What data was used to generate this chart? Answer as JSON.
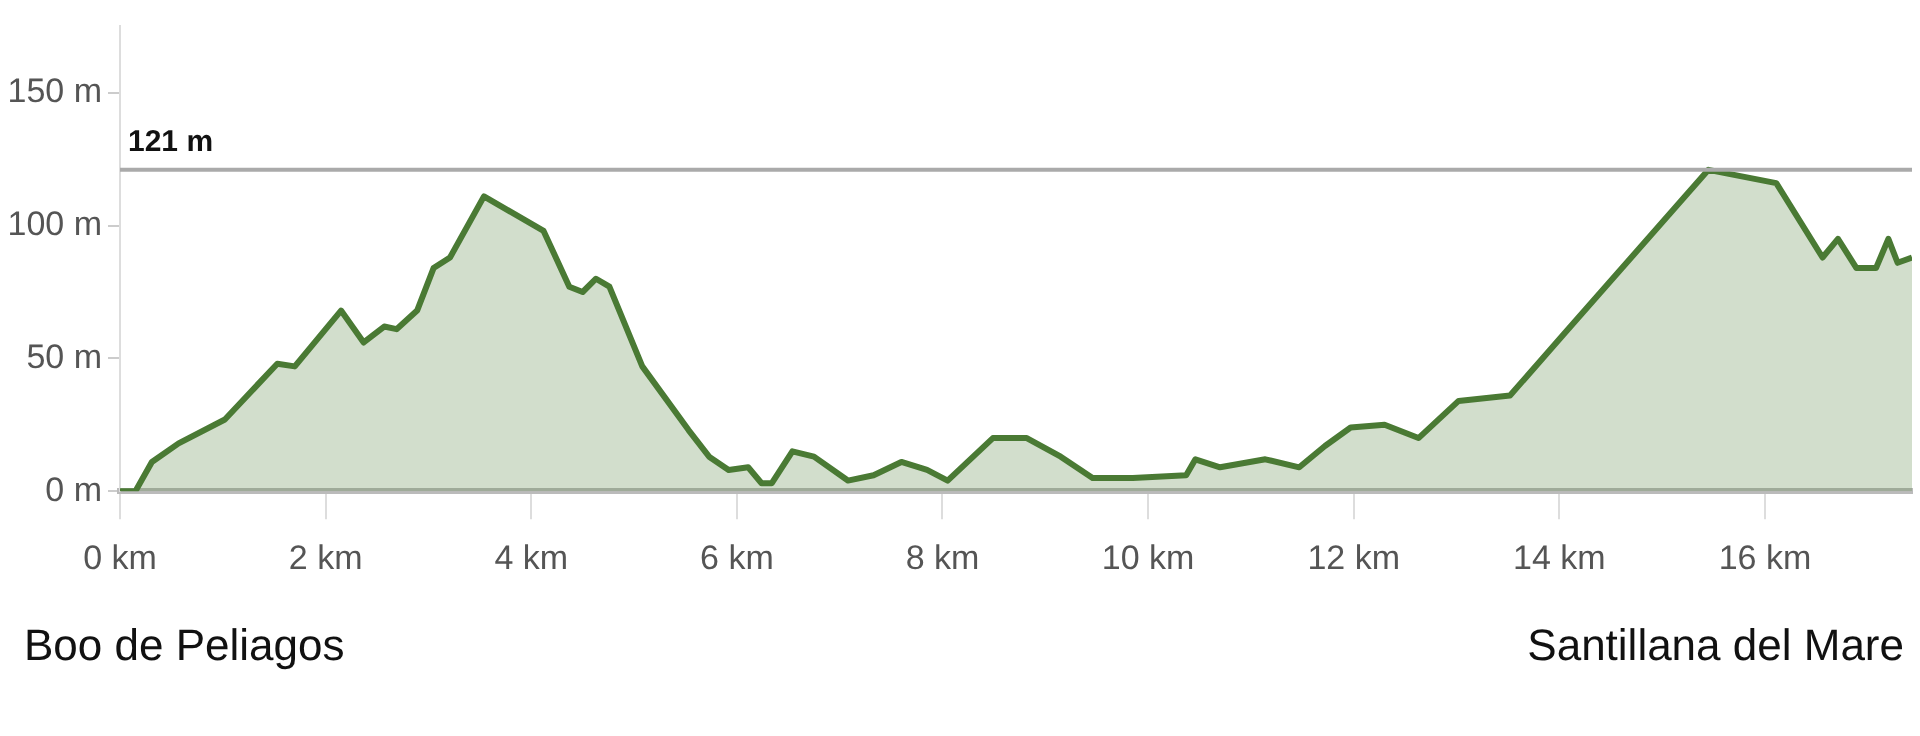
{
  "chart_data": {
    "type": "area",
    "x": [
      0,
      0.15,
      0.31,
      0.57,
      1.02,
      1.53,
      1.7,
      2.15,
      2.37,
      2.57,
      2.69,
      2.89,
      3.05,
      3.21,
      3.54,
      4.12,
      4.37,
      4.5,
      4.63,
      4.76,
      5.08,
      5.53,
      5.73,
      5.92,
      6.11,
      6.24,
      6.34,
      6.54,
      6.75,
      7.08,
      7.33,
      7.6,
      7.85,
      8.05,
      8.49,
      8.82,
      9.15,
      9.46,
      9.85,
      10.37,
      10.46,
      10.7,
      11.14,
      11.47,
      11.72,
      11.97,
      12.3,
      12.63,
      13.02,
      13.52,
      14.04,
      15.45,
      16.11,
      16.56,
      16.71,
      16.89,
      17.08,
      17.2,
      17.29,
      17.43
    ],
    "series": [
      {
        "color": "#4a7a34",
        "values": [
          0,
          0,
          11,
          18,
          27,
          48,
          47,
          68,
          56,
          62,
          61,
          68,
          84,
          88,
          111,
          98,
          77,
          75,
          80,
          77,
          47,
          23,
          13,
          8,
          9,
          3,
          3,
          15,
          13,
          4,
          6,
          11,
          8,
          4,
          20,
          20,
          13,
          5,
          5,
          6,
          12,
          9,
          12,
          9,
          17,
          24,
          25,
          20,
          34,
          36,
          59,
          121,
          116,
          88,
          95,
          84,
          84,
          95,
          86,
          88
        ]
      }
    ],
    "xlim": [
      0,
      17.43
    ],
    "ylim": [
      0,
      175
    ],
    "xticks": [
      {
        "value": 0,
        "label": "0 km"
      },
      {
        "value": 2,
        "label": "2 km"
      },
      {
        "value": 4,
        "label": "4 km"
      },
      {
        "value": 6,
        "label": "6 km"
      },
      {
        "value": 8,
        "label": "8 km"
      },
      {
        "value": 10,
        "label": "10 km"
      },
      {
        "value": 12,
        "label": "12 km"
      },
      {
        "value": 14,
        "label": "14 km"
      },
      {
        "value": 16,
        "label": "16 km"
      }
    ],
    "yticks": [
      {
        "value": 0,
        "label": "0 m"
      },
      {
        "value": 50,
        "label": "50 m"
      },
      {
        "value": 100,
        "label": "100 m"
      },
      {
        "value": 150,
        "label": "150 m"
      }
    ],
    "ref_lines": [
      {
        "axis": "y",
        "value": 121,
        "label": "121 m",
        "color": "#aaaaaa"
      }
    ],
    "grid": false,
    "legend": false,
    "marker": "none",
    "line_style": "solid",
    "annotations": [
      "Boo de Peliagos",
      "Santillana del Mare"
    ]
  }
}
